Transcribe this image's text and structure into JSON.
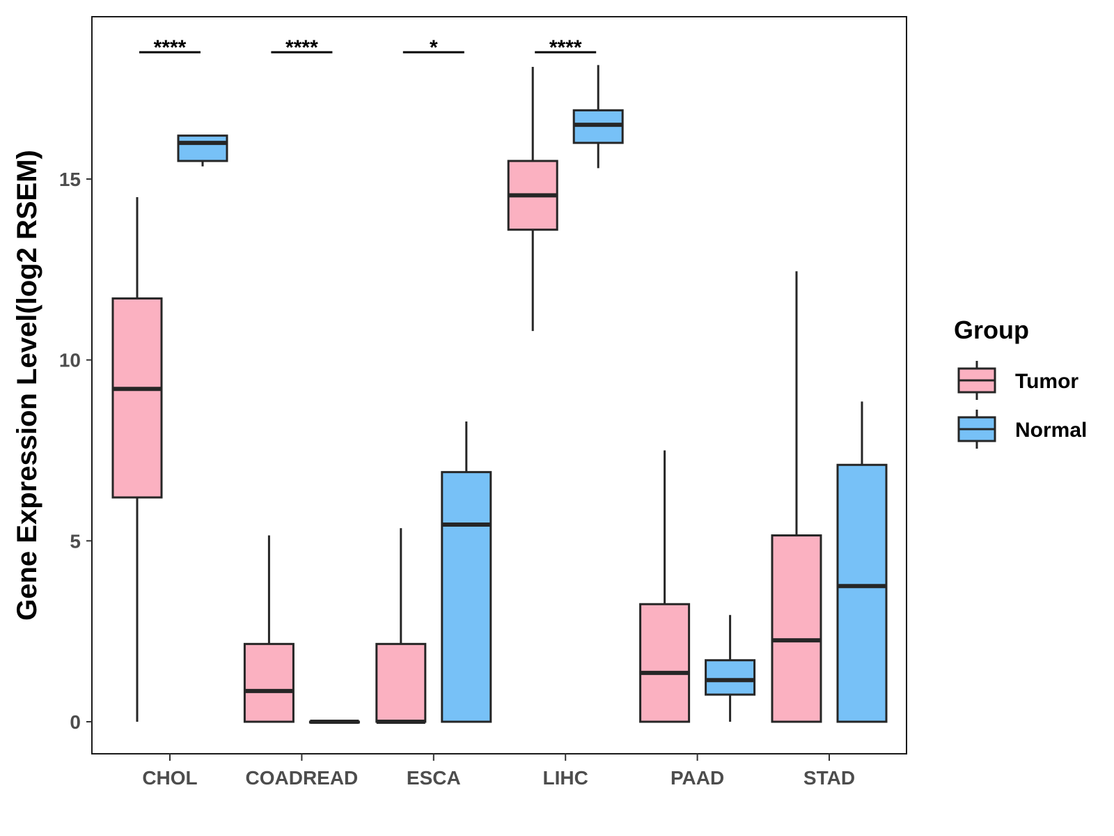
{
  "chart_data": {
    "type": "boxplot",
    "title": "",
    "xlabel": "",
    "ylabel": "Gene Expression Level(log2 RSEM)",
    "ylim": [
      -0.9,
      19.5
    ],
    "yticks": [
      0,
      5,
      10,
      15
    ],
    "categories": [
      "CHOL",
      "COADREAD",
      "ESCA",
      "LIHC",
      "PAAD",
      "STAD"
    ],
    "legend": {
      "title": "Group",
      "position": "right",
      "entries": [
        {
          "name": "Tumor",
          "color": "#fbb1c1"
        },
        {
          "name": "Normal",
          "color": "#77c1f7"
        }
      ]
    },
    "series": [
      {
        "name": "Tumor",
        "color": "#fbb1c1",
        "boxes": [
          {
            "category": "CHOL",
            "min": 0.0,
            "q1": 6.2,
            "median": 9.2,
            "q3": 11.7,
            "max": 14.5
          },
          {
            "category": "COADREAD",
            "min": 0.0,
            "q1": 0.0,
            "median": 0.85,
            "q3": 2.15,
            "max": 5.15
          },
          {
            "category": "ESCA",
            "min": 0.0,
            "q1": 0.0,
            "median": 0.0,
            "q3": 2.15,
            "max": 5.35
          },
          {
            "category": "LIHC",
            "min": 10.8,
            "q1": 13.6,
            "median": 14.55,
            "q3": 15.5,
            "max": 18.1
          },
          {
            "category": "PAAD",
            "min": 0.0,
            "q1": 0.0,
            "median": 1.35,
            "q3": 3.25,
            "max": 7.5
          },
          {
            "category": "STAD",
            "min": 0.0,
            "q1": 0.0,
            "median": 2.25,
            "q3": 5.15,
            "max": 12.45
          }
        ]
      },
      {
        "name": "Normal",
        "color": "#77c1f7",
        "boxes": [
          {
            "category": "CHOL",
            "min": 15.35,
            "q1": 15.5,
            "median": 16.0,
            "q3": 16.2,
            "max": 16.2
          },
          {
            "category": "COADREAD",
            "min": 0.0,
            "q1": 0.0,
            "median": 0.0,
            "q3": 0.0,
            "max": 0.0
          },
          {
            "category": "ESCA",
            "min": 0.0,
            "q1": 0.0,
            "median": 5.45,
            "q3": 6.9,
            "max": 8.3
          },
          {
            "category": "LIHC",
            "min": 15.3,
            "q1": 16.0,
            "median": 16.5,
            "q3": 16.9,
            "max": 18.15
          },
          {
            "category": "PAAD",
            "min": 0.0,
            "q1": 0.75,
            "median": 1.15,
            "q3": 1.7,
            "max": 2.95
          },
          {
            "category": "STAD",
            "min": 0.0,
            "q1": 0.0,
            "median": 3.75,
            "q3": 7.1,
            "max": 8.85
          }
        ]
      }
    ],
    "annotations": [
      {
        "category": "CHOL",
        "text": "****"
      },
      {
        "category": "COADREAD",
        "text": "****"
      },
      {
        "category": "ESCA",
        "text": "*"
      },
      {
        "category": "LIHC",
        "text": "****"
      }
    ]
  }
}
